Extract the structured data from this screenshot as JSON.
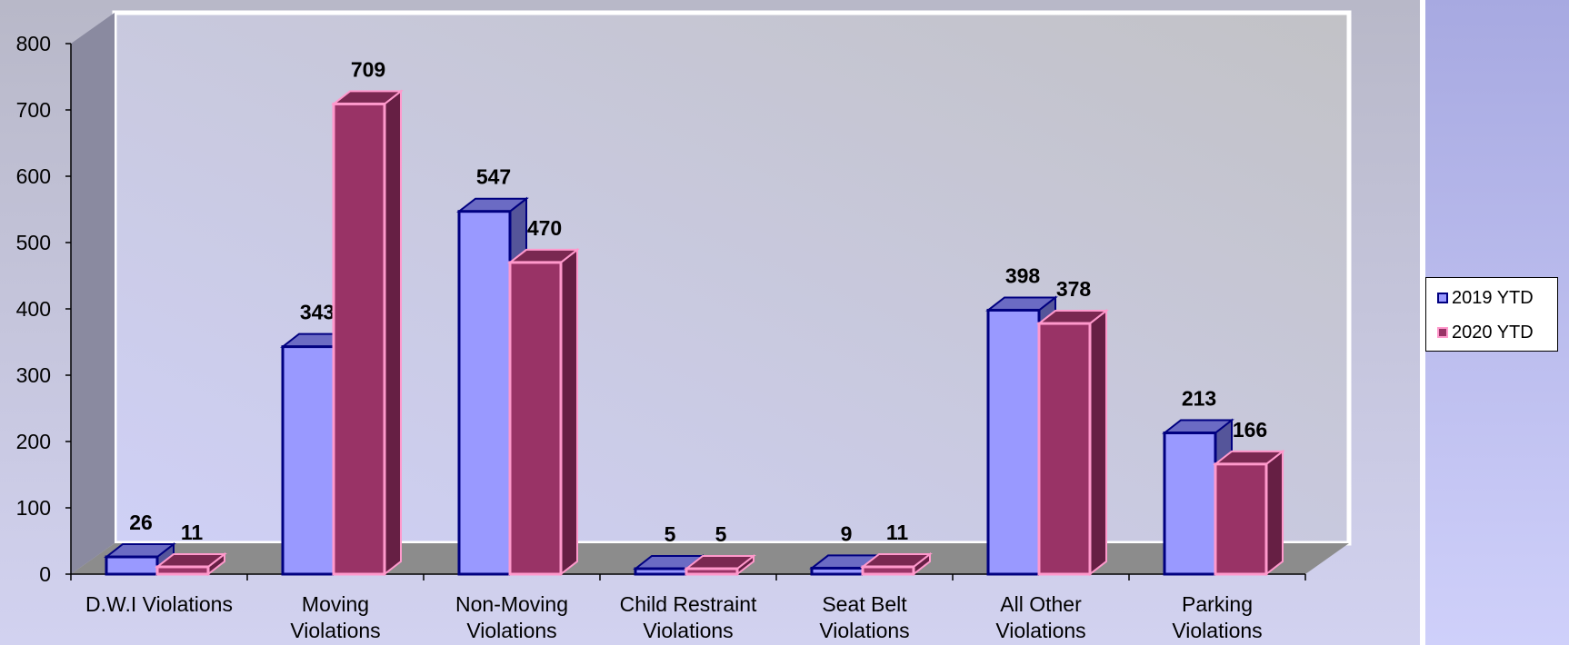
{
  "chart_data": {
    "type": "bar",
    "categories": [
      [
        "D.W.I Violations"
      ],
      [
        "Moving",
        "Violations"
      ],
      [
        "Non-Moving",
        "Violations"
      ],
      [
        "Child Restraint",
        "Violations"
      ],
      [
        "Seat Belt",
        "Violations"
      ],
      [
        "All Other",
        "Violations"
      ],
      [
        "Parking",
        "Violations"
      ]
    ],
    "series": [
      {
        "name": "2019 YTD",
        "values": [
          26,
          343,
          547,
          5,
          9,
          398,
          213
        ]
      },
      {
        "name": "2020 YTD",
        "values": [
          11,
          709,
          470,
          5,
          11,
          378,
          166
        ]
      }
    ],
    "ylim": [
      0,
      800
    ],
    "yticks": [
      "0",
      "100",
      "200",
      "300",
      "400",
      "500",
      "600",
      "700",
      "800"
    ],
    "legend_position": "right",
    "colors": {
      "series1_fill": "#9999ff",
      "series1_top": "#6b6bc4",
      "series1_side": "#55559a",
      "series1_edge": "#000080",
      "series2_fill": "#993366",
      "series2_top": "#7a2851",
      "series2_side": "#661f44",
      "series2_edge": "#ff99cc"
    }
  }
}
